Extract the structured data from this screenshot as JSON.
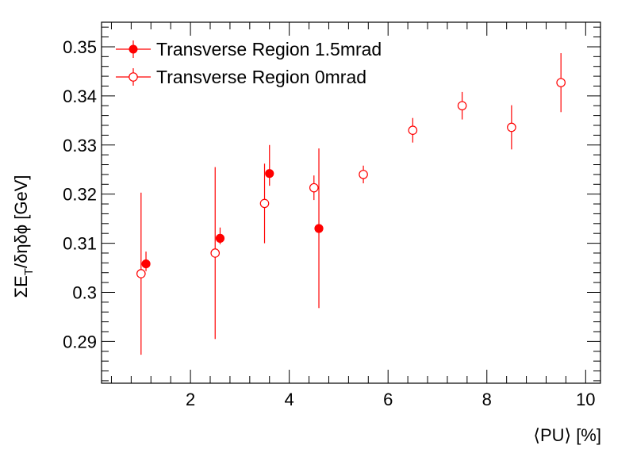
{
  "chart_data": {
    "type": "scatter",
    "title": "",
    "xlabel": "⟨PU⟩ [%]",
    "ylabel": "ΣE_T/δηδϕ [GeV]",
    "ylabel_parts": {
      "pre": "ΣE",
      "sub": "T",
      "post": "/δηδϕ [GeV]"
    },
    "xlim": [
      0.2,
      10.3
    ],
    "ylim": [
      0.2815,
      0.355
    ],
    "x_major_ticks": [
      2,
      4,
      6,
      8,
      10
    ],
    "x_tick_labels": [
      "2",
      "4",
      "6",
      "8",
      "10"
    ],
    "y_major_ticks": [
      0.29,
      0.3,
      0.31,
      0.32,
      0.33,
      0.34,
      0.35
    ],
    "y_tick_labels": [
      "0.29",
      "0.3",
      "0.31",
      "0.32",
      "0.33",
      "0.34",
      "0.35"
    ],
    "grid": false,
    "legend_position": "top-left",
    "series": [
      {
        "name": "Transverse Region 1.5mrad",
        "marker": "filled-circle",
        "color": "#ff0000",
        "points": [
          {
            "x": 1.1,
            "y": 0.3058,
            "err_low": 0.0015,
            "err_high": 0.0025
          },
          {
            "x": 2.6,
            "y": 0.311,
            "err_low": 0.0012,
            "err_high": 0.0022
          },
          {
            "x": 3.6,
            "y": 0.3242,
            "err_low": 0.0025,
            "err_high": 0.0058
          },
          {
            "x": 4.6,
            "y": 0.313,
            "err_low": 0.0162,
            "err_high": 0.0163
          }
        ]
      },
      {
        "name": "Transverse Region 0mrad",
        "marker": "open-circle",
        "color": "#ff0000",
        "points": [
          {
            "x": 1.0,
            "y": 0.3038,
            "err_low": 0.0165,
            "err_high": 0.0165
          },
          {
            "x": 2.5,
            "y": 0.308,
            "err_low": 0.0175,
            "err_high": 0.0175
          },
          {
            "x": 3.5,
            "y": 0.3181,
            "err_low": 0.0081,
            "err_high": 0.0081
          },
          {
            "x": 4.5,
            "y": 0.3213,
            "err_low": 0.0025,
            "err_high": 0.0025
          },
          {
            "x": 5.5,
            "y": 0.324,
            "err_low": 0.0018,
            "err_high": 0.0018
          },
          {
            "x": 6.5,
            "y": 0.333,
            "err_low": 0.0025,
            "err_high": 0.0025
          },
          {
            "x": 7.5,
            "y": 0.338,
            "err_low": 0.0028,
            "err_high": 0.0028
          },
          {
            "x": 8.5,
            "y": 0.3336,
            "err_low": 0.0045,
            "err_high": 0.0045
          },
          {
            "x": 9.5,
            "y": 0.3427,
            "err_low": 0.006,
            "err_high": 0.006
          }
        ]
      }
    ]
  }
}
